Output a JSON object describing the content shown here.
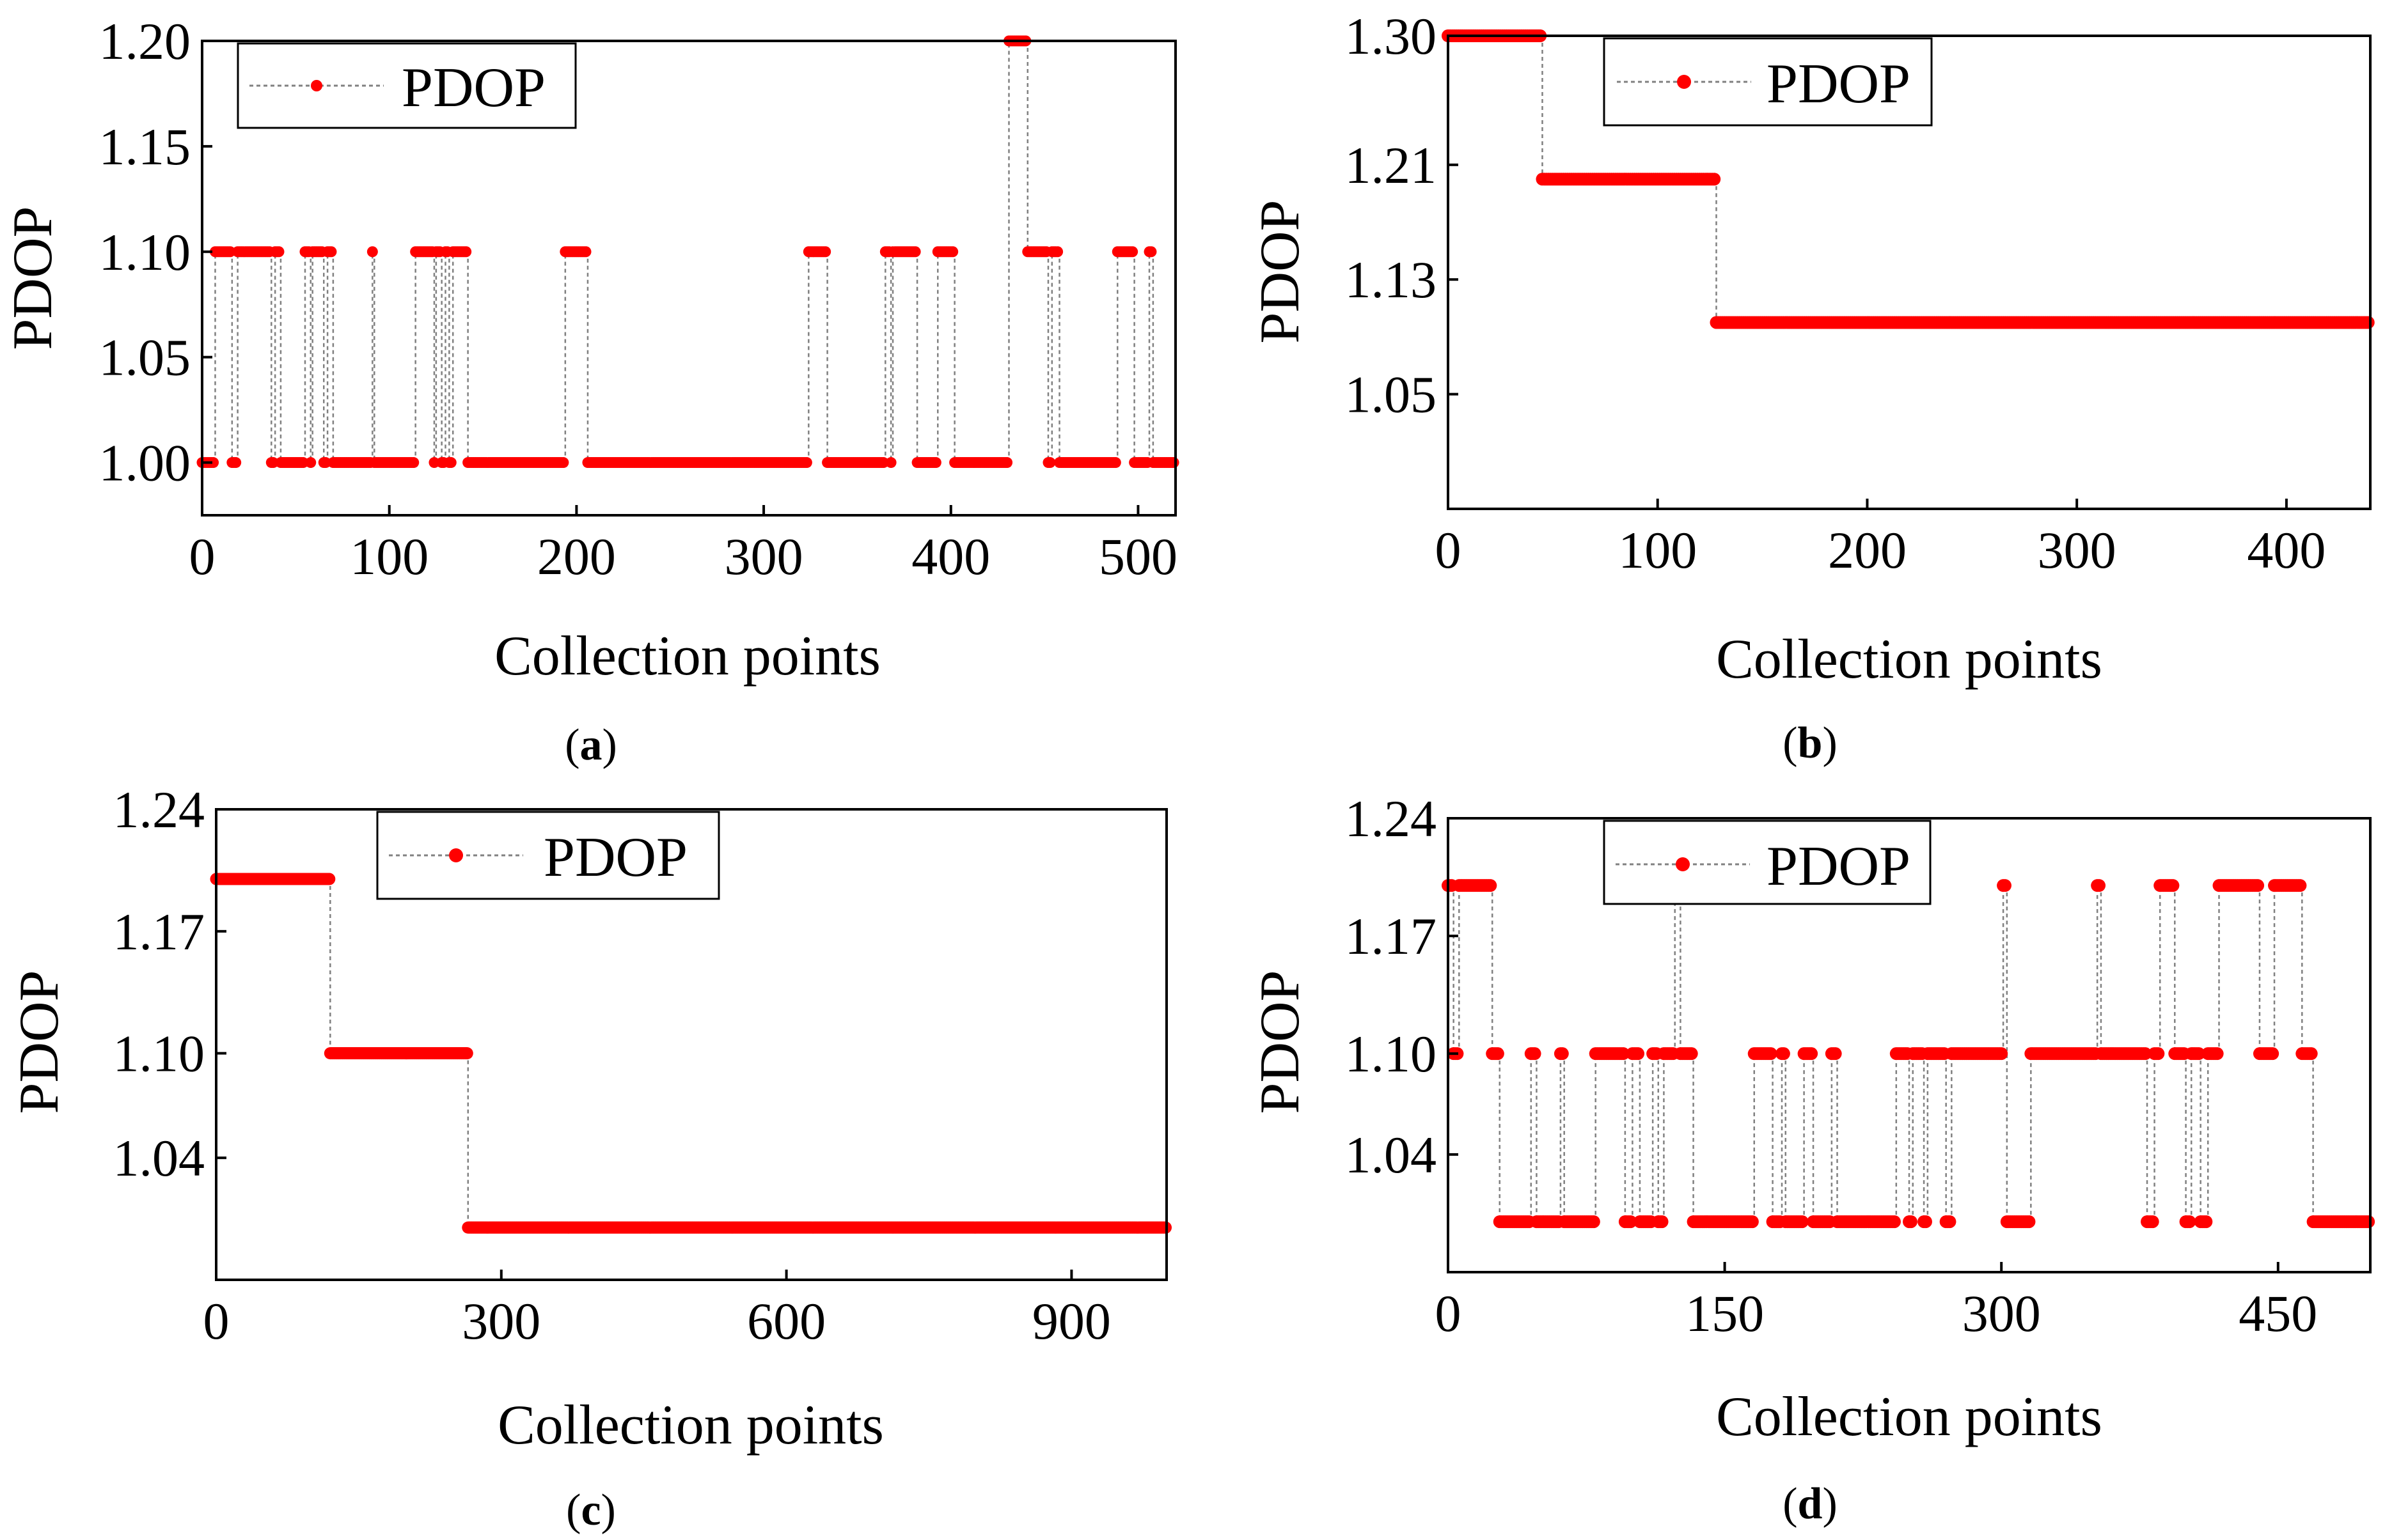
{
  "colors": {
    "series": "#ff0000",
    "connector": "#808080",
    "axis": "#000000"
  },
  "chart_data": [
    {
      "id": "a",
      "panel_label": "a",
      "type": "line",
      "xlabel": "Collection points",
      "ylabel": "PDOP",
      "legend": "PDOP",
      "legend_position": "top-left",
      "xlim": [
        0,
        520
      ],
      "ylim": [
        0.975,
        1.2
      ],
      "xticks": [
        0,
        100,
        200,
        300,
        400,
        500
      ],
      "xtick_labels": [
        "0",
        "100",
        "200",
        "300",
        "400",
        "500"
      ],
      "yticks": [
        1.0,
        1.05,
        1.1,
        1.15,
        1.2
      ],
      "ytick_labels": [
        "1.00",
        "1.05",
        "1.10",
        "1.15",
        "1.20"
      ],
      "n_points": 520,
      "segments": [
        [
          0,
          1.0
        ],
        [
          7,
          1.1
        ],
        [
          16,
          1.0
        ],
        [
          19,
          1.1
        ],
        [
          37,
          1.0
        ],
        [
          39,
          1.1
        ],
        [
          42,
          1.0
        ],
        [
          55,
          1.1
        ],
        [
          58,
          1.0
        ],
        [
          59,
          1.1
        ],
        [
          65,
          1.0
        ],
        [
          67,
          1.1
        ],
        [
          70,
          1.0
        ],
        [
          91,
          1.1
        ],
        [
          92,
          1.0
        ],
        [
          114,
          1.1
        ],
        [
          124,
          1.0
        ],
        [
          125,
          1.1
        ],
        [
          128,
          1.0
        ],
        [
          130,
          1.1
        ],
        [
          132,
          1.0
        ],
        [
          134,
          1.1
        ],
        [
          142,
          1.0
        ],
        [
          194,
          1.1
        ],
        [
          206,
          1.0
        ],
        [
          324,
          1.1
        ],
        [
          334,
          1.0
        ],
        [
          365,
          1.1
        ],
        [
          368,
          1.0
        ],
        [
          369,
          1.1
        ],
        [
          382,
          1.0
        ],
        [
          393,
          1.1
        ],
        [
          402,
          1.0
        ],
        [
          431,
          1.2
        ],
        [
          441,
          1.1
        ],
        [
          452,
          1.0
        ],
        [
          454,
          1.1
        ],
        [
          458,
          1.0
        ],
        [
          489,
          1.1
        ],
        [
          498,
          1.0
        ],
        [
          506,
          1.1
        ],
        [
          508,
          1.0
        ]
      ]
    },
    {
      "id": "b",
      "panel_label": "b",
      "type": "line",
      "xlabel": "Collection points",
      "ylabel": "PDOP",
      "legend": "PDOP",
      "legend_position": "top-center",
      "xlim": [
        0,
        440
      ],
      "ylim": [
        0.97,
        1.3
      ],
      "xticks": [
        0,
        100,
        200,
        300,
        400
      ],
      "xtick_labels": [
        "0",
        "100",
        "200",
        "300",
        "400"
      ],
      "yticks": [
        1.05,
        1.13,
        1.21,
        1.3
      ],
      "ytick_labels": [
        "1.05",
        "1.13",
        "1.21",
        "1.30"
      ],
      "n_points": 440,
      "segments": [
        [
          0,
          1.3
        ],
        [
          45,
          1.2
        ],
        [
          128,
          1.1
        ]
      ]
    },
    {
      "id": "c",
      "panel_label": "c",
      "type": "line",
      "xlabel": "Collection points",
      "ylabel": "PDOP",
      "legend": "PDOP",
      "legend_position": "top-center",
      "xlim": [
        0,
        1000
      ],
      "ylim": [
        0.97,
        1.24
      ],
      "xticks": [
        0,
        300,
        600,
        900
      ],
      "xtick_labels": [
        "0",
        "300",
        "600",
        "900"
      ],
      "yticks": [
        1.04,
        1.1,
        1.17,
        1.24
      ],
      "ytick_labels": [
        "1.04",
        "1.10",
        "1.17",
        "1.24"
      ],
      "n_points": 1000,
      "segments": [
        [
          0,
          1.2
        ],
        [
          120,
          1.1
        ],
        [
          265,
          1.0
        ]
      ]
    },
    {
      "id": "d",
      "panel_label": "d",
      "type": "line",
      "xlabel": "Collection points",
      "ylabel": "PDOP",
      "legend": "PDOP",
      "legend_position": "top-center",
      "xlim": [
        0,
        500
      ],
      "ylim": [
        0.97,
        1.24
      ],
      "xticks": [
        0,
        150,
        300,
        450
      ],
      "xtick_labels": [
        "0",
        "150",
        "300",
        "450"
      ],
      "yticks": [
        1.04,
        1.1,
        1.17,
        1.24
      ],
      "ytick_labels": [
        "1.04",
        "1.10",
        "1.17",
        "1.24"
      ],
      "n_points": 500,
      "segments": [
        [
          0,
          1.2
        ],
        [
          3,
          1.1
        ],
        [
          6,
          1.2
        ],
        [
          24,
          1.1
        ],
        [
          28,
          1.0
        ],
        [
          45,
          1.1
        ],
        [
          48,
          1.0
        ],
        [
          61,
          1.1
        ],
        [
          63,
          1.0
        ],
        [
          80,
          1.1
        ],
        [
          96,
          1.0
        ],
        [
          100,
          1.1
        ],
        [
          104,
          1.0
        ],
        [
          111,
          1.1
        ],
        [
          114,
          1.0
        ],
        [
          117,
          1.1
        ],
        [
          123,
          1.2
        ],
        [
          126,
          1.1
        ],
        [
          133,
          1.0
        ],
        [
          166,
          1.1
        ],
        [
          176,
          1.0
        ],
        [
          181,
          1.1
        ],
        [
          183,
          1.0
        ],
        [
          193,
          1.1
        ],
        [
          198,
          1.0
        ],
        [
          208,
          1.1
        ],
        [
          211,
          1.0
        ],
        [
          243,
          1.1
        ],
        [
          250,
          1.0
        ],
        [
          252,
          1.1
        ],
        [
          258,
          1.0
        ],
        [
          260,
          1.1
        ],
        [
          270,
          1.0
        ],
        [
          273,
          1.1
        ],
        [
          301,
          1.2
        ],
        [
          303,
          1.0
        ],
        [
          316,
          1.1
        ],
        [
          352,
          1.2
        ],
        [
          354,
          1.1
        ],
        [
          379,
          1.0
        ],
        [
          383,
          1.1
        ],
        [
          386,
          1.2
        ],
        [
          394,
          1.1
        ],
        [
          400,
          1.0
        ],
        [
          403,
          1.1
        ],
        [
          408,
          1.0
        ],
        [
          412,
          1.1
        ],
        [
          418,
          1.2
        ],
        [
          440,
          1.1
        ],
        [
          448,
          1.2
        ],
        [
          463,
          1.1
        ],
        [
          469,
          1.0
        ]
      ]
    }
  ]
}
